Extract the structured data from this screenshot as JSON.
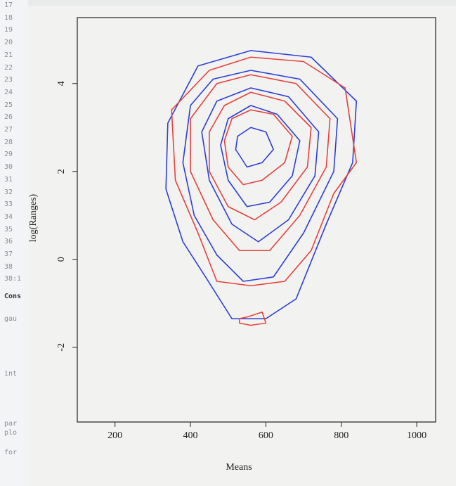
{
  "editor": {
    "line_numbers": [
      "17",
      "18",
      "19",
      "20",
      "21",
      "22",
      "23",
      "24",
      "25",
      "26",
      "27",
      "28",
      "29",
      "30",
      "31",
      "32",
      "33",
      "34",
      "35",
      "36",
      "37",
      "38",
      "38:1"
    ],
    "console": [
      "Cons",
      "gau",
      "int",
      "par",
      "plo",
      "for"
    ]
  },
  "chart_data": {
    "type": "contour",
    "xlabel": "Means",
    "ylabel": "log(Ranges)",
    "xlim": [
      100,
      1050
    ],
    "ylim": [
      -3.7,
      5.5
    ],
    "xticks": [
      200,
      400,
      600,
      800,
      1000
    ],
    "yticks": [
      -2,
      0,
      2,
      4
    ],
    "series": [
      {
        "color": "#2b3fd6",
        "contours": [
          {
            "x": [
              560,
              720,
              840,
              830,
              760,
              680,
              600,
              510,
              440,
              380,
              335,
              340,
              420
            ],
            "y": [
              4.75,
              4.6,
              3.6,
              2.2,
              0.8,
              -0.9,
              -1.35,
              -1.35,
              -0.4,
              0.4,
              1.6,
              3.1,
              4.4
            ]
          },
          {
            "x": [
              560,
              690,
              790,
              780,
              700,
              620,
              540,
              470,
              410,
              380,
              400,
              460
            ],
            "y": [
              4.3,
              4.1,
              3.2,
              2.0,
              0.6,
              -0.4,
              -0.5,
              0.1,
              1.0,
              2.2,
              3.5,
              4.1
            ]
          },
          {
            "x": [
              560,
              660,
              740,
              730,
              660,
              580,
              510,
              450,
              430,
              470
            ],
            "y": [
              3.9,
              3.7,
              2.9,
              1.9,
              0.9,
              0.4,
              0.8,
              1.8,
              2.9,
              3.6
            ]
          },
          {
            "x": [
              560,
              630,
              690,
              670,
              610,
              550,
              500,
              480,
              500
            ],
            "y": [
              3.5,
              3.3,
              2.7,
              1.9,
              1.3,
              1.2,
              1.8,
              2.6,
              3.2
            ]
          },
          {
            "x": [
              560,
              600,
              620,
              590,
              550,
              520,
              525
            ],
            "y": [
              3.0,
              2.9,
              2.5,
              2.2,
              2.1,
              2.5,
              2.8
            ]
          }
        ]
      },
      {
        "color": "#e8413c",
        "contours": [
          {
            "x": [
              560,
              700,
              810,
              840,
              780,
              720,
              650,
              560,
              470,
              420,
              360,
              350,
              450
            ],
            "y": [
              4.6,
              4.5,
              3.9,
              2.2,
              1.5,
              0.2,
              -0.5,
              -0.6,
              -0.5,
              0.6,
              1.8,
              3.4,
              4.3
            ]
          },
          {
            "x": [
              560,
              680,
              770,
              760,
              690,
              610,
              530,
              460,
              400,
              400,
              470
            ],
            "y": [
              4.2,
              4.0,
              3.2,
              2.1,
              1.0,
              0.2,
              0.2,
              0.9,
              2.0,
              3.2,
              4.0
            ]
          },
          {
            "x": [
              560,
              650,
              720,
              710,
              640,
              570,
              500,
              450,
              450,
              490
            ],
            "y": [
              3.8,
              3.6,
              3.0,
              2.1,
              1.3,
              0.9,
              1.2,
              2.0,
              2.9,
              3.5
            ]
          },
          {
            "x": [
              560,
              620,
              670,
              650,
              590,
              540,
              500,
              490,
              510
            ],
            "y": [
              3.4,
              3.3,
              2.8,
              2.2,
              1.8,
              1.7,
              2.1,
              2.7,
              3.2
            ]
          },
          {
            "x": [
              555,
              590,
              600,
              560,
              530,
              530
            ],
            "y": [
              -1.3,
              -1.2,
              -1.45,
              -1.5,
              -1.45,
              -1.35
            ]
          }
        ]
      }
    ]
  }
}
